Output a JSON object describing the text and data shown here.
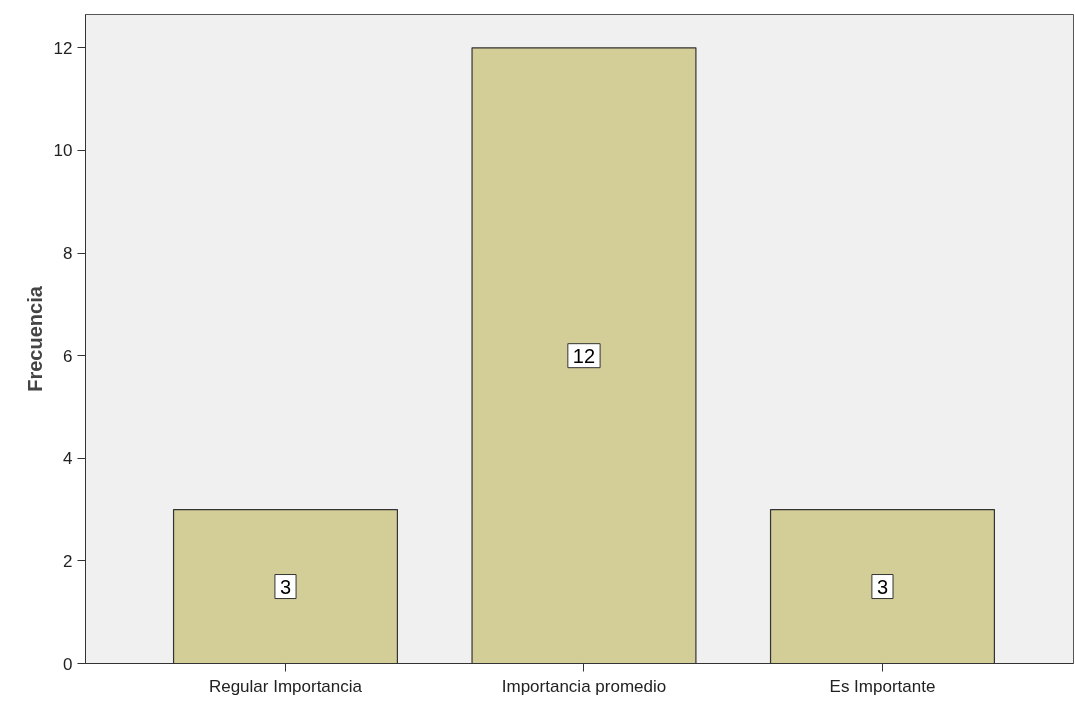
{
  "chart_data": {
    "type": "bar",
    "ylabel": "Frecuencia",
    "categories": [
      "Regular Importancia",
      "Importancia promedio",
      "Es Importante"
    ],
    "values": [
      3,
      12,
      3
    ],
    "color": "#d3cd97",
    "ylim": [
      0,
      12.65
    ],
    "yticks": [
      0,
      2,
      4,
      6,
      8,
      10,
      12
    ],
    "grid": false,
    "data_labels": true
  }
}
